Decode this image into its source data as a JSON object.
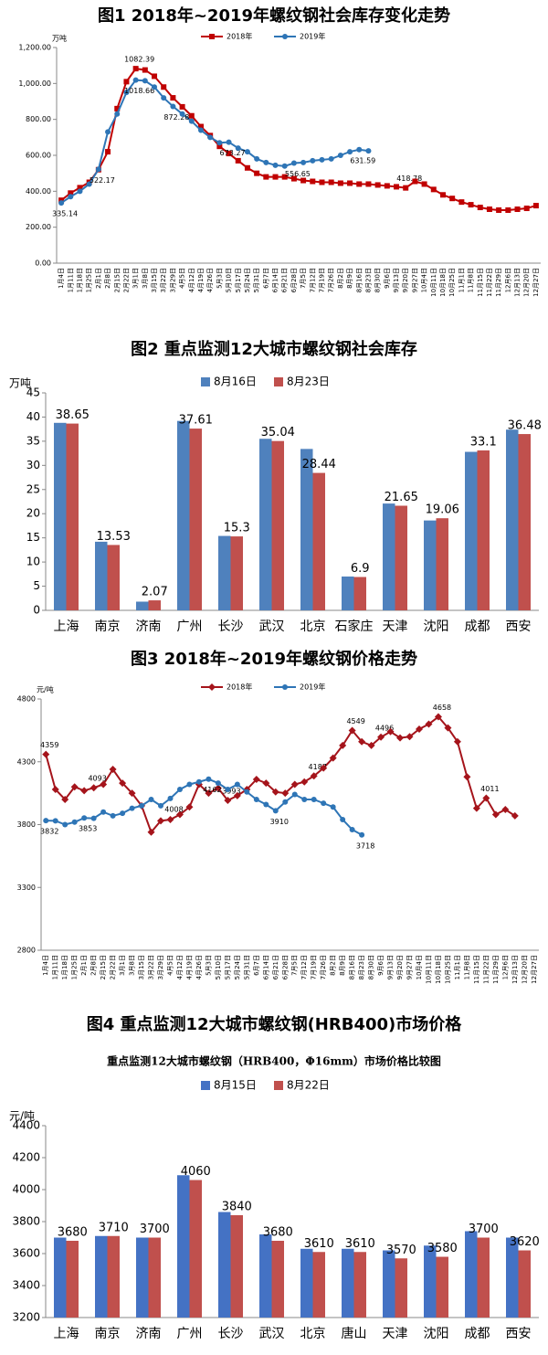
{
  "chart_data": [
    {
      "type": "line",
      "title": "图1 2018年~2019年螺纹钢社会库存变化走势",
      "y_label": "万吨",
      "categories": [
        "1月4日",
        "1月11日",
        "1月18日",
        "1月25日",
        "2月1日",
        "2月8日",
        "2月15日",
        "2月22日",
        "3月1日",
        "3月8日",
        "3月15日",
        "3月22日",
        "3月29日",
        "4月5日",
        "4月12日",
        "4月19日",
        "4月26日",
        "5月3日",
        "5月10日",
        "5月17日",
        "5月24日",
        "5月31日",
        "6月7日",
        "6月14日",
        "6月21日",
        "6月28日",
        "7月5日",
        "7月12日",
        "7月19日",
        "7月26日",
        "8月2日",
        "8月9日",
        "8月16日",
        "8月23日",
        "8月30日",
        "9月6日",
        "9月13日",
        "9月20日",
        "9月27日",
        "10月4日",
        "10月11日",
        "10月18日",
        "10月25日",
        "11月1日",
        "11月8日",
        "11月15日",
        "11月22日",
        "11月29日",
        "12月6日",
        "12月13日",
        "12月20日",
        "12月27日"
      ],
      "series": [
        {
          "name": "2018年",
          "color": "#c00000",
          "marker": "square",
          "values": [
            350,
            390,
            420,
            450,
            520,
            620,
            860,
            1010,
            1082.39,
            1075,
            1040,
            980,
            920,
            870,
            820,
            760,
            710,
            650,
            610,
            570,
            530,
            500,
            480,
            480,
            480,
            470,
            460,
            455,
            450,
            450,
            445,
            445,
            440,
            440,
            435,
            430,
            425,
            418.78,
            455,
            440,
            410,
            380,
            360,
            340,
            325,
            310,
            300,
            295,
            295,
            300,
            305,
            320
          ],
          "value_labels": [
            null,
            null,
            null,
            null,
            null,
            null,
            null,
            null,
            "1082.39",
            null,
            null,
            null,
            null,
            null,
            null,
            null,
            null,
            null,
            null,
            null,
            null,
            null,
            null,
            null,
            null,
            null,
            null,
            null,
            null,
            null,
            null,
            null,
            null,
            null,
            null,
            null,
            null,
            "418.78",
            null,
            null,
            null,
            null,
            null,
            null,
            null,
            null,
            null,
            null,
            null,
            null,
            null,
            null
          ]
        },
        {
          "name": "2019年",
          "color": "#2e75b6",
          "marker": "circle",
          "values": [
            335.14,
            370,
            400,
            440,
            522.17,
            730,
            830,
            950,
            1018.66,
            1015,
            980,
            920,
            872.28,
            830,
            790,
            740,
            700,
            670,
            673.27,
            640,
            620,
            580,
            560,
            545,
            540,
            556.65,
            560,
            570,
            575,
            580,
            600,
            620,
            631.59,
            625,
            null,
            null,
            null,
            null,
            null,
            null,
            null,
            null,
            null,
            null,
            null,
            null,
            null,
            null,
            null,
            null,
            null,
            null
          ],
          "value_labels": [
            "335.14",
            null,
            null,
            null,
            "522.17",
            null,
            null,
            null,
            "1018.66",
            null,
            null,
            null,
            "872.28",
            null,
            null,
            null,
            null,
            null,
            "673.27",
            null,
            null,
            null,
            null,
            null,
            null,
            "556.65",
            null,
            null,
            null,
            null,
            null,
            null,
            "631.59",
            null,
            null,
            null,
            null,
            null,
            null,
            null,
            null,
            null,
            null,
            null,
            null,
            null,
            null,
            null,
            null,
            null,
            null,
            null
          ]
        }
      ],
      "ylim": [
        0,
        1200
      ],
      "yticks": [
        {
          "value": 0,
          "label": "0.00"
        },
        {
          "value": 200,
          "label": "200.00"
        },
        {
          "value": 400,
          "label": "400.00"
        },
        {
          "value": 600,
          "label": "600.00"
        },
        {
          "value": 800,
          "label": "800.00"
        },
        {
          "value": 1000,
          "label": "1,000.00"
        },
        {
          "value": 1200,
          "label": "1,200.00"
        }
      ],
      "grid": false,
      "legend": "top"
    },
    {
      "type": "bar",
      "title": "图2 重点监测12大城市螺纹钢社会库存",
      "y_label": "万吨",
      "categories": [
        "上海",
        "南京",
        "济南",
        "广州",
        "长沙",
        "武汉",
        "北京",
        "石家庄",
        "天津",
        "沈阳",
        "成都",
        "西安"
      ],
      "series": [
        {
          "name": "8月16日",
          "color": "#4f81bd",
          "values": [
            38.8,
            14.2,
            1.8,
            39.2,
            15.4,
            35.5,
            33.4,
            7.0,
            22.1,
            18.6,
            32.8,
            37.4
          ]
        },
        {
          "name": "8月23日",
          "color": "#c0504d",
          "data_labels": true,
          "values": [
            38.65,
            13.53,
            2.07,
            37.61,
            15.3,
            35.04,
            28.44,
            6.9,
            21.65,
            19.06,
            33.1,
            36.48
          ]
        }
      ],
      "ylim": [
        0,
        45
      ],
      "yticks": [
        0,
        5,
        10,
        15,
        20,
        25,
        30,
        35,
        40,
        45
      ],
      "grid": false,
      "legend": "top"
    },
    {
      "type": "line",
      "title": "图3 2018年~2019年螺纹钢价格走势",
      "y_label": "元/吨",
      "categories": [
        "1月4日",
        "1月11日",
        "1月18日",
        "1月25日",
        "2月1日",
        "2月8日",
        "2月15日",
        "2月22日",
        "3月1日",
        "3月8日",
        "3月15日",
        "3月22日",
        "3月29日",
        "4月5日",
        "4月12日",
        "4月19日",
        "4月26日",
        "5月3日",
        "5月10日",
        "5月17日",
        "5月24日",
        "5月31日",
        "6月7日",
        "6月14日",
        "6月21日",
        "6月28日",
        "7月5日",
        "7月12日",
        "7月19日",
        "7月26日",
        "8月2日",
        "8月9日",
        "8月16日",
        "8月23日",
        "8月30日",
        "9月6日",
        "9月13日",
        "9月20日",
        "9月27日",
        "10月4日",
        "10月11日",
        "10月18日",
        "10月25日",
        "11月1日",
        "11月8日",
        "11月15日",
        "11月22日",
        "11月29日",
        "12月6日",
        "12月13日",
        "12月20日",
        "12月27日"
      ],
      "series": [
        {
          "name": "2018年",
          "color": "#a5141b",
          "marker": "diamond",
          "values": [
            4359,
            4080,
            4000,
            4100,
            4070,
            4093,
            4120,
            4240,
            4130,
            4050,
            3950,
            3740,
            3830,
            3840,
            3880,
            3940,
            4120,
            4050,
            4090,
            3993,
            4030,
            4080,
            4160,
            4130,
            4060,
            4050,
            4120,
            4140,
            4187,
            4250,
            4330,
            4430,
            4549,
            4460,
            4430,
            4496,
            4540,
            4490,
            4500,
            4560,
            4600,
            4658,
            4570,
            4460,
            4180,
            3930,
            4011,
            3880,
            3920,
            3870,
            null,
            null
          ],
          "value_labels": [
            "4359",
            null,
            null,
            null,
            null,
            "4093",
            null,
            null,
            null,
            null,
            null,
            null,
            null,
            null,
            null,
            null,
            null,
            null,
            null,
            "3993",
            null,
            null,
            null,
            null,
            null,
            null,
            null,
            null,
            "4187",
            null,
            null,
            null,
            "4549",
            null,
            null,
            "4496",
            null,
            null,
            null,
            null,
            null,
            "4658",
            null,
            null,
            null,
            null,
            "4011",
            null,
            null,
            null,
            null,
            null
          ]
        },
        {
          "name": "2019年",
          "color": "#2e75b6",
          "marker": "circle",
          "values": [
            3832,
            3830,
            3800,
            3820,
            3853,
            3850,
            3900,
            3870,
            3890,
            3930,
            3950,
            4000,
            3950,
            4008,
            4080,
            4120,
            4140,
            4162,
            4130,
            4080,
            4120,
            4060,
            4000,
            3960,
            3910,
            3980,
            4040,
            4000,
            4000,
            3970,
            3940,
            3840,
            3760,
            3718,
            null,
            null,
            null,
            null,
            null,
            null,
            null,
            null,
            null,
            null,
            null,
            null,
            null,
            null,
            null,
            null,
            null,
            null
          ],
          "value_labels": [
            "3832",
            null,
            null,
            null,
            "3853",
            null,
            null,
            null,
            null,
            null,
            null,
            null,
            null,
            "4008",
            null,
            null,
            null,
            "4162",
            null,
            null,
            null,
            null,
            null,
            null,
            "3910",
            null,
            null,
            null,
            null,
            null,
            null,
            null,
            null,
            "3718",
            null,
            null,
            null,
            null,
            null,
            null,
            null,
            null,
            null,
            null,
            null,
            null,
            null,
            null,
            null,
            null,
            null,
            null
          ]
        }
      ],
      "ylim": [
        2800,
        4800
      ],
      "yticks": [
        2800,
        3300,
        3800,
        4300,
        4800
      ],
      "grid": false,
      "legend": "top"
    },
    {
      "type": "bar",
      "title": "图4 重点监测12大城市螺纹钢(HRB400)市场价格",
      "subtitle": "重点监测12大城市螺纹钢（HRB400，Φ16mm）市场价格比较图",
      "y_label": "元/吨",
      "categories": [
        "上海",
        "南京",
        "济南",
        "广州",
        "长沙",
        "武汉",
        "北京",
        "唐山",
        "天津",
        "沈阳",
        "成都",
        "西安"
      ],
      "series": [
        {
          "name": "8月15日",
          "color": "#4472c4",
          "values": [
            3700,
            3710,
            3700,
            4090,
            3860,
            3720,
            3630,
            3630,
            3620,
            3650,
            3740,
            3700
          ]
        },
        {
          "name": "8月22日",
          "color": "#c0504d",
          "data_labels": true,
          "values": [
            3680,
            3710,
            3700,
            4060,
            3840,
            3680,
            3610,
            3610,
            3570,
            3580,
            3700,
            3620
          ]
        }
      ],
      "ylim": [
        3200,
        4400
      ],
      "yticks": [
        3200,
        3400,
        3600,
        3800,
        4000,
        4200,
        4400
      ],
      "grid": false,
      "legend": "top"
    }
  ]
}
